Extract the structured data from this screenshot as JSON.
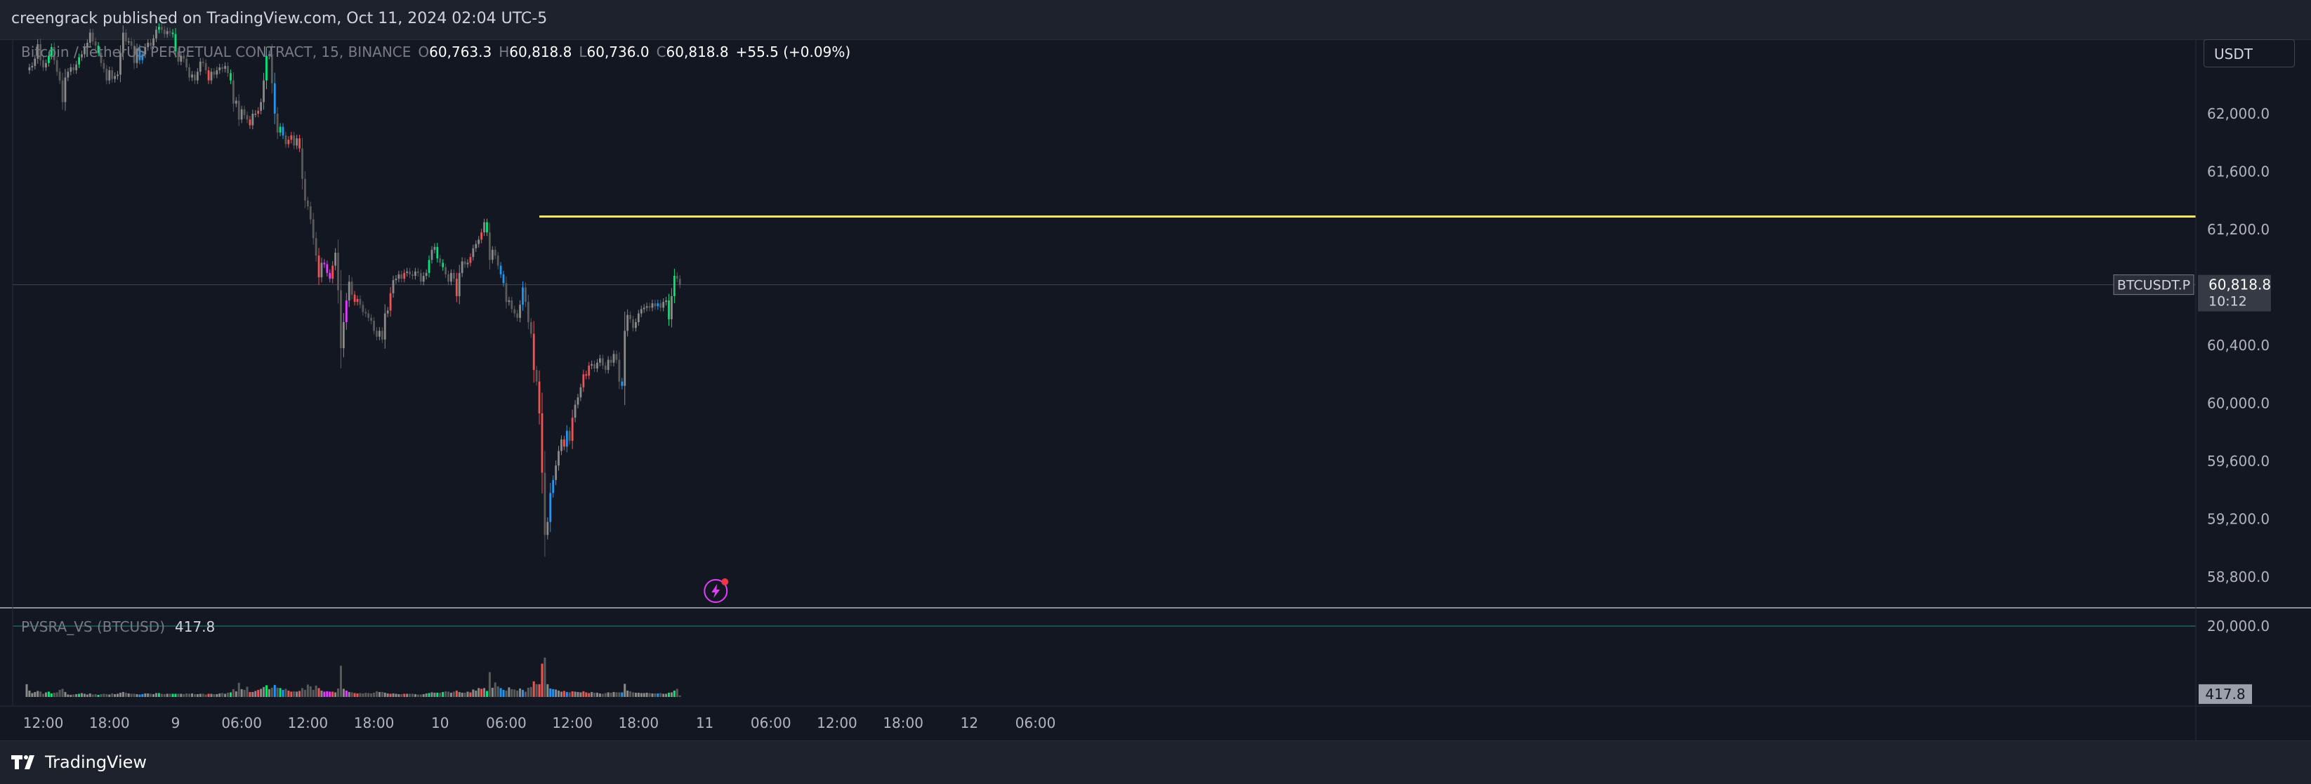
{
  "header": {
    "published": "creengrack published on TradingView.com, Oct 11, 2024 02:04 UTC-5"
  },
  "footer": {
    "brand": "TradingView"
  },
  "price_scale": {
    "currency": "USDT",
    "symbol_tag": "BTCUSDT.P",
    "last_price": "60,818.8",
    "countdown": "10:12"
  },
  "legend": {
    "symbol": "Bitcoin / TetherUS PERPETUAL CONTRACT, 15, BINANCE",
    "o_label": "O",
    "open": "60,763.3",
    "h_label": "H",
    "high": "60,818.8",
    "l_label": "L",
    "low": "60,736.0",
    "c_label": "C",
    "close": "60,818.8",
    "change": "+55.5 (+0.09%)"
  },
  "volume_legend": {
    "name": "PVSRA_VS (BTCUSD)",
    "value": "417.8",
    "last_tag": "417.8"
  },
  "colors": {
    "background": "#131722",
    "up_normal": "#8a8a8a",
    "down_normal": "#5a5a5a",
    "climax_up": "#00e676",
    "climax_down": "#f05350",
    "rising_up": "#2196f3",
    "rising_down": "#e040fb",
    "level_line": "#f5e663"
  },
  "chart_data": {
    "type": "candlestick",
    "timeframe": "15",
    "y_axis": {
      "ticks": [
        62000,
        61600,
        61200,
        60400,
        60000,
        59600,
        59200,
        58800
      ],
      "tick_labels": [
        "62,000.0",
        "61,600.0",
        "61,200.0",
        "60,400.0",
        "60,000.0",
        "59,600.0",
        "59,200.0",
        "58,800.0"
      ],
      "range": [
        58600,
        62600
      ]
    },
    "volume_axis": {
      "ticks": [
        20000
      ],
      "tick_labels": [
        "20,000.0"
      ],
      "range": [
        0,
        26000
      ]
    },
    "x_axis": {
      "tick_labels": [
        "12:00",
        "18:00",
        "9",
        "06:00",
        "12:00",
        "18:00",
        "10",
        "06:00",
        "12:00",
        "18:00",
        "11",
        "06:00",
        "12:00",
        "18:00",
        "12",
        "06:00"
      ],
      "tick_index": [
        0,
        24,
        48,
        72,
        96,
        120,
        144,
        168,
        192,
        216,
        240,
        264,
        288,
        312,
        336,
        360
      ]
    },
    "start_index": -6,
    "horizontal_level": {
      "price": 61290,
      "from_index": 180
    },
    "last_price_line": 60818.8,
    "candles_oc": [
      62300,
      62320,
      62330,
      62380,
      62480,
      62370,
      62320,
      62350,
      62400,
      62460,
      62370,
      62290,
      62230,
      62080,
      62250,
      62290,
      62320,
      62300,
      62340,
      62390,
      62410,
      62460,
      62490,
      62560,
      62500,
      62470,
      62420,
      62350,
      62310,
      62230,
      62300,
      62240,
      62260,
      62270,
      62420,
      62560,
      62500,
      62500,
      62470,
      62350,
      62450,
      62370,
      62410,
      62460,
      62490,
      62470,
      62520,
      62580,
      62600,
      62580,
      62550,
      62570,
      62560,
      62550,
      62430,
      62360,
      62400,
      62380,
      62320,
      62250,
      62270,
      62230,
      62290,
      62360,
      62350,
      62300,
      62230,
      62290,
      62270,
      62300,
      62320,
      62310,
      62330,
      62280,
      62230,
      62070,
      62090,
      61960,
      62030,
      61990,
      61960,
      61920,
      62000,
      62000,
      62020,
      62080,
      62230,
      62400,
      62410,
      62210,
      62000,
      61870,
      61910,
      61850,
      61790,
      61820,
      61850,
      61780,
      61830,
      61760,
      61550,
      61400,
      61360,
      61270,
      61140,
      61020,
      60870,
      60970,
      60960,
      60900,
      60860,
      60950,
      61040,
      60780,
      60380,
      60560,
      60710,
      60840,
      60750,
      60700,
      60720,
      60680,
      60630,
      60620,
      60590,
      60570,
      60500,
      60460,
      60500,
      60440,
      60620,
      60640,
      60760,
      60850,
      60860,
      60890,
      60860,
      60900,
      60910,
      60890,
      60880,
      60910,
      60900,
      60840,
      60880,
      60900,
      60990,
      61060,
      61080,
      61000,
      60970,
      60940,
      60890,
      60840,
      60900,
      60860,
      60740,
      60900,
      60980,
      60960,
      60970,
      61010,
      61070,
      61100,
      61130,
      61180,
      61250,
      61180,
      60990,
      61060,
      61020,
      60950,
      60890,
      60830,
      60700,
      60710,
      60650,
      60620,
      60590,
      60680,
      60800,
      60700,
      60560,
      60480,
      60230,
      60150,
      59930,
      59520,
      59090,
      59180,
      59380,
      59470,
      59570,
      59670,
      59750,
      59700,
      59810,
      59740,
      59900,
      59990,
      60040,
      60110,
      60200,
      60190,
      60260,
      60270,
      60240,
      60280,
      60310,
      60260,
      60230,
      60300,
      60280,
      60340,
      60300,
      60150,
      60120,
      60500,
      60610,
      60580,
      60520,
      60560,
      60620,
      60650,
      60660,
      60670,
      60660,
      60690,
      60670,
      60690,
      60660,
      60700,
      60710,
      60580,
      60740,
      60880,
      60860,
      60819
    ],
    "volume": [
      3600,
      1800,
      1100,
      1400,
      1700,
      1500,
      900,
      1300,
      1500,
      1000,
      1200,
      1300,
      2000,
      2300,
      1400,
      700,
      600,
      700,
      800,
      900,
      1100,
      900,
      700,
      1000,
      700,
      800,
      600,
      800,
      900,
      800,
      700,
      1000,
      800,
      900,
      1200,
      1400,
      1200,
      1000,
      900,
      900,
      800,
      700,
      800,
      1000,
      1000,
      900,
      800,
      1100,
      1100,
      900,
      800,
      900,
      900,
      900,
      900,
      900,
      900,
      800,
      1000,
      900,
      1000,
      800,
      800,
      900,
      900,
      700,
      900,
      900,
      800,
      800,
      1000,
      1100,
      900,
      1200,
      1300,
      2200,
      1600,
      4000,
      2200,
      2000,
      2900,
      1400,
      1400,
      1700,
      2000,
      2300,
      2800,
      3300,
      2200,
      2600,
      3400,
      2600,
      2500,
      2000,
      2300,
      1800,
      1500,
      1600,
      1500,
      1700,
      2500,
      2000,
      3500,
      3000,
      2000,
      3200,
      2500,
      1800,
      1500,
      1600,
      1500,
      1500,
      1300,
      2400,
      8800,
      2300,
      1800,
      1400,
      1300,
      1100,
      1000,
      1100,
      1000,
      1200,
      1100,
      1000,
      1200,
      1600,
      1400,
      1400,
      1200,
      1000,
      900,
      1000,
      900,
      800,
      800,
      900,
      900,
      900,
      900,
      800,
      700,
      700,
      800,
      1000,
      1100,
      1300,
      1200,
      1200,
      1200,
      1400,
      1600,
      1500,
      1200,
      1500,
      1800,
      1400,
      1200,
      1200,
      1500,
      1300,
      2100,
      1800,
      2500,
      2300,
      2500,
      1700,
      7000,
      2600,
      4100,
      3000,
      2500,
      2000,
      1800,
      2700,
      2200,
      2100,
      1800,
      2400,
      2000,
      1500,
      2600,
      2800,
      4400,
      3600,
      3600,
      9400,
      11100,
      3600,
      2400,
      2200,
      2100,
      1800,
      1500,
      1700,
      1400,
      1300,
      1600,
      1500,
      1400,
      1300,
      1600,
      1300,
      1100,
      1400,
      1200,
      1200,
      1000,
      900,
      1100,
      1300,
      1200,
      1400,
      1300,
      1300,
      1300,
      3700,
      1800,
      1600,
      1300,
      1200,
      1200,
      1100,
      1100,
      1200,
      1100,
      1000,
      1000,
      1000,
      1100,
      900,
      900,
      1200,
      1300,
      1800,
      2300,
      418
    ],
    "special": {
      "2": "climax_up",
      "3": "climax_up",
      "13": "climax_up",
      "20": "climax_up",
      "35": "rising_up",
      "36": "rising_up",
      "42": "climax_up",
      "47": "climax_up",
      "48": "climax_up",
      "60": "climax_down",
      "68": "climax_up",
      "75": "climax_down",
      "78": "climax_down",
      "81": "climax_up",
      "84": "rising_up",
      "86": "climax_up",
      "87": "rising_up",
      "89": "climax_down",
      "90": "climax_down",
      "93": "climax_down",
      "100": "climax_down",
      "102": "rising_down",
      "103": "rising_down",
      "104": "rising_down",
      "105": "climax_down",
      "110": "rising_down",
      "113": "climax_down",
      "114": "climax_down",
      "126": "climax_down",
      "131": "climax_down",
      "140": "climax_up",
      "143": "climax_up",
      "145": "climax_up",
      "150": "climax_down",
      "155": "climax_down",
      "159": "climax_down",
      "161": "climax_up",
      "166": "rising_up",
      "167": "rising_up",
      "174": "rising_up",
      "178": "climax_down",
      "180": "climax_down",
      "181": "climax_down",
      "184": "rising_up",
      "185": "rising_up",
      "189": "climax_down",
      "190": "rising_up",
      "192": "climax_down",
      "196": "climax_down",
      "197": "climax_down",
      "198": "climax_down",
      "210": "rising_up",
      "223": "rising_up",
      "227": "climax_up",
      "229": "climax_up",
      "242": "climax_up",
      "245": "climax_up",
      "246": "climax_up",
      "247": "climax_up"
    }
  }
}
